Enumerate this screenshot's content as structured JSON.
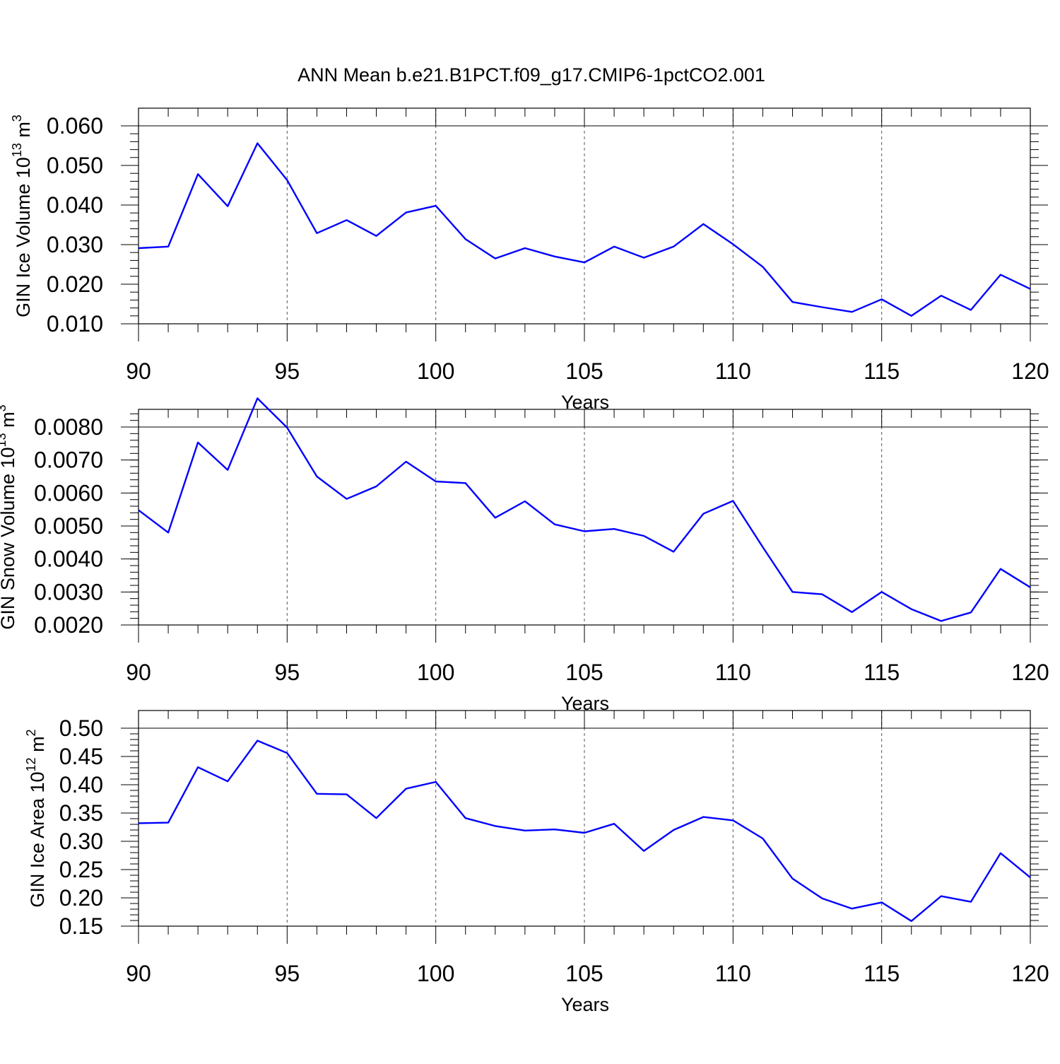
{
  "title": "ANN Mean b.e21.B1PCT.f09_g17.CMIP6-1pctCO2.001",
  "chart_data": [
    {
      "type": "line",
      "ylabel": {
        "text": "GIN Ice Volume 10",
        "sup1": "13",
        "unit": " m",
        "sup2": "3"
      },
      "xlabel": "Years",
      "xlim": [
        90,
        120
      ],
      "ylim": [
        0.01,
        0.06
      ],
      "yticks": [
        "0.010",
        "0.020",
        "0.030",
        "0.040",
        "0.050",
        "0.060"
      ],
      "xticks": [
        "90",
        "95",
        "100",
        "105",
        "110",
        "115",
        "120"
      ],
      "grid": "x-dashed",
      "line_color": "#0000ff",
      "x": [
        90,
        91,
        92,
        93,
        94,
        95,
        96,
        97,
        98,
        99,
        100,
        101,
        102,
        103,
        104,
        105,
        106,
        107,
        108,
        109,
        110,
        111,
        112,
        113,
        114,
        115,
        116,
        117,
        118,
        119,
        120
      ],
      "series": [
        {
          "values": [
            0.0291,
            0.0295,
            0.0478,
            0.0397,
            0.0556,
            0.0463,
            0.0329,
            0.0362,
            0.0322,
            0.0381,
            0.0398,
            0.0314,
            0.0265,
            0.0291,
            0.027,
            0.0255,
            0.0295,
            0.0267,
            0.0295,
            0.0352,
            0.0301,
            0.0244,
            0.0155,
            0.0142,
            0.013,
            0.0162,
            0.012,
            0.0171,
            0.0135,
            0.0224,
            0.0188
          ]
        }
      ]
    },
    {
      "type": "line",
      "ylabel": {
        "text": "GIN Snow Volume 10",
        "sup1": "13",
        "unit": " m",
        "sup2": "3"
      },
      "xlabel": "Years",
      "xlim": [
        90,
        120
      ],
      "ylim": [
        0.002,
        0.009
      ],
      "yticks": [
        "0.0020",
        "0.0030",
        "0.0040",
        "0.0050",
        "0.0060",
        "0.0070",
        "0.0080"
      ],
      "xticks": [
        "90",
        "95",
        "100",
        "105",
        "110",
        "115",
        "120"
      ],
      "grid": "x-dashed",
      "line_color": "#0000ff",
      "x": [
        90,
        91,
        92,
        93,
        94,
        95,
        96,
        97,
        98,
        99,
        100,
        101,
        102,
        103,
        104,
        105,
        106,
        107,
        108,
        109,
        110,
        111,
        112,
        113,
        114,
        115,
        116,
        117,
        118,
        119,
        120
      ],
      "series": [
        {
          "values": [
            0.00548,
            0.0048,
            0.00753,
            0.0067,
            0.00887,
            0.00798,
            0.0065,
            0.00582,
            0.0062,
            0.00695,
            0.00635,
            0.0063,
            0.00525,
            0.00575,
            0.00505,
            0.00484,
            0.00491,
            0.0047,
            0.00422,
            0.00537,
            0.00576,
            0.00436,
            0.003,
            0.00293,
            0.00239,
            0.003,
            0.00248,
            0.00212,
            0.00238,
            0.0037,
            0.00314
          ]
        }
      ]
    },
    {
      "type": "line",
      "ylabel": {
        "text": "GIN Ice Area 10",
        "sup1": "12",
        "unit": " m",
        "sup2": "2"
      },
      "xlabel": "Years",
      "xlim": [
        90,
        120
      ],
      "ylim": [
        0.15,
        0.5
      ],
      "yticks": [
        "0.15",
        "0.20",
        "0.25",
        "0.30",
        "0.35",
        "0.40",
        "0.45",
        "0.50"
      ],
      "xticks": [
        "90",
        "95",
        "100",
        "105",
        "110",
        "115",
        "120"
      ],
      "grid": "x-dashed",
      "line_color": "#0000ff",
      "x": [
        90,
        91,
        92,
        93,
        94,
        95,
        96,
        97,
        98,
        99,
        100,
        101,
        102,
        103,
        104,
        105,
        106,
        107,
        108,
        109,
        110,
        111,
        112,
        113,
        114,
        115,
        116,
        117,
        118,
        119,
        120
      ],
      "series": [
        {
          "values": [
            0.332,
            0.333,
            0.431,
            0.406,
            0.478,
            0.456,
            0.384,
            0.383,
            0.341,
            0.393,
            0.405,
            0.341,
            0.327,
            0.319,
            0.321,
            0.315,
            0.331,
            0.283,
            0.32,
            0.343,
            0.337,
            0.305,
            0.234,
            0.199,
            0.181,
            0.192,
            0.159,
            0.203,
            0.193,
            0.279,
            0.236
          ]
        }
      ]
    }
  ]
}
